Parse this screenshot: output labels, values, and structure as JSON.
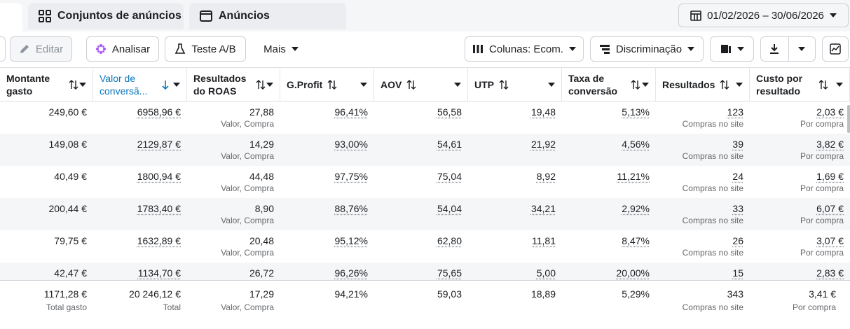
{
  "tabs": [
    "Conjuntos de anúncios",
    "Anúncios"
  ],
  "date_range": "01/02/2026 – 30/06/2026",
  "toolbar": {
    "edit": "Editar",
    "analyze": "Analisar",
    "ab_test": "Teste A/B",
    "more": "Mais",
    "columns": "Colunas: Ecom.",
    "breakdown": "Discriminação"
  },
  "table": {
    "columns": [
      "Montante gasto",
      "Valor de conversã...",
      "Resultados do ROAS",
      "G.Profit",
      "AOV",
      "UTP",
      "Taxa de conversão",
      "Resultados",
      "Custo por resultado"
    ],
    "rows": [
      [
        {
          "text": "249,60 €"
        },
        {
          "text": "6958,96 €"
        },
        {
          "text": "27,88",
          "sub": "Valor, Compra"
        },
        {
          "text": "96,41%"
        },
        {
          "text": "56,58"
        },
        {
          "text": "19,48"
        },
        {
          "text": "5,13%"
        },
        {
          "text": "123",
          "sub": "Compras no site"
        },
        {
          "text": "2,03 €",
          "sub": "Por compra"
        }
      ],
      [
        {
          "text": "149,08 €"
        },
        {
          "text": "2129,87 €"
        },
        {
          "text": "14,29",
          "sub": "Valor, Compra"
        },
        {
          "text": "93,00%"
        },
        {
          "text": "54,61"
        },
        {
          "text": "21,92"
        },
        {
          "text": "4,56%"
        },
        {
          "text": "39",
          "sub": "Compras no site"
        },
        {
          "text": "3,82 €",
          "sub": "Por compra"
        }
      ],
      [
        {
          "text": "40,49 €"
        },
        {
          "text": "1800,94 €"
        },
        {
          "text": "44,48",
          "sub": "Valor, Compra"
        },
        {
          "text": "97,75%"
        },
        {
          "text": "75,04"
        },
        {
          "text": "8,92"
        },
        {
          "text": "11,21%"
        },
        {
          "text": "24",
          "sub": "Compras no site"
        },
        {
          "text": "1,69 €",
          "sub": "Por compra"
        }
      ],
      [
        {
          "text": "200,44 €"
        },
        {
          "text": "1783,40 €"
        },
        {
          "text": "8,90",
          "sub": "Valor, Compra"
        },
        {
          "text": "88,76%"
        },
        {
          "text": "54,04"
        },
        {
          "text": "34,21"
        },
        {
          "text": "2,92%"
        },
        {
          "text": "33",
          "sub": "Compras no site"
        },
        {
          "text": "6,07 €",
          "sub": "Por compra"
        }
      ],
      [
        {
          "text": "79,75 €"
        },
        {
          "text": "1632,89 €"
        },
        {
          "text": "20,48",
          "sub": "Valor, Compra"
        },
        {
          "text": "95,12%"
        },
        {
          "text": "62,80"
        },
        {
          "text": "11,81"
        },
        {
          "text": "8,47%"
        },
        {
          "text": "26",
          "sub": "Compras no site"
        },
        {
          "text": "3,07 €",
          "sub": "Por compra"
        }
      ],
      [
        {
          "text": "42,47 €"
        },
        {
          "text": "1134,70 €"
        },
        {
          "text": "26,72"
        },
        {
          "text": "96,26%"
        },
        {
          "text": "75,65"
        },
        {
          "text": "5,00"
        },
        {
          "text": "20,00%"
        },
        {
          "text": "15"
        },
        {
          "text": "2,83 €"
        }
      ]
    ],
    "totals": [
      {
        "text": "1171,28 €",
        "sub": "Total gasto"
      },
      {
        "text": "20 246,12 €",
        "sub": "Total"
      },
      {
        "text": "17,29",
        "sub": "Valor, Compra"
      },
      {
        "text": "94,21%"
      },
      {
        "text": "59,03"
      },
      {
        "text": "18,89"
      },
      {
        "text": "5,29%"
      },
      {
        "text": "343",
        "sub": "Compras no site"
      },
      {
        "text": "3,41 €",
        "sub": "Por compra"
      }
    ]
  }
}
